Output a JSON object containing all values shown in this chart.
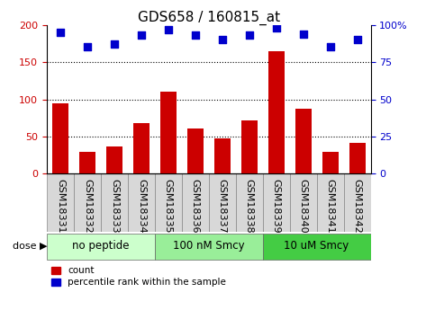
{
  "title": "GDS658 / 160815_at",
  "samples": [
    "GSM18331",
    "GSM18332",
    "GSM18333",
    "GSM18334",
    "GSM18335",
    "GSM18336",
    "GSM18337",
    "GSM18338",
    "GSM18339",
    "GSM18340",
    "GSM18341",
    "GSM18342"
  ],
  "counts": [
    95,
    30,
    37,
    68,
    110,
    61,
    47,
    72,
    165,
    87,
    29,
    41
  ],
  "percentiles": [
    95,
    85,
    87,
    93,
    97,
    93,
    90,
    93,
    98,
    94,
    85,
    90
  ],
  "bar_color": "#cc0000",
  "scatter_color": "#0000cc",
  "left_ylim": [
    0,
    200
  ],
  "right_ylim": [
    0,
    100
  ],
  "left_yticks": [
    0,
    50,
    100,
    150,
    200
  ],
  "right_yticks": [
    0,
    25,
    50,
    75,
    100
  ],
  "right_yticklabels": [
    "0",
    "25",
    "50",
    "75",
    "100%"
  ],
  "groups": [
    {
      "label": "no peptide",
      "start": 0,
      "end": 4,
      "color": "#ccffcc"
    },
    {
      "label": "100 nM Smcy",
      "start": 4,
      "end": 8,
      "color": "#99ee99"
    },
    {
      "label": "10 uM Smcy",
      "start": 8,
      "end": 12,
      "color": "#44cc44"
    }
  ],
  "dose_label": "dose ▶",
  "legend_count_label": "count",
  "legend_percentile_label": "percentile rank within the sample",
  "title_fontsize": 11,
  "tick_fontsize": 8,
  "group_fontsize": 8.5
}
